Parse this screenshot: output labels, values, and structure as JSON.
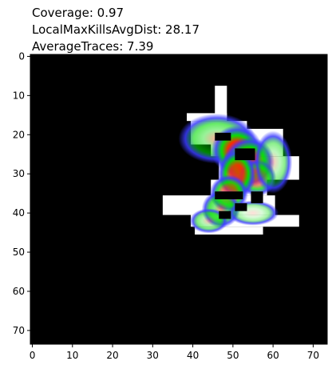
{
  "chart_data": {
    "type": "heatmap",
    "title_lines": [
      "Coverage: 0.97",
      "LocalMaxKillsAvgDist: 28.17",
      "AverageTraces: 7.39"
    ],
    "xlabel": "",
    "ylabel": "",
    "xlim": [
      -0.5,
      73.5
    ],
    "ylim": [
      73.5,
      -0.5
    ],
    "x_ticks": [
      0,
      10,
      20,
      30,
      40,
      50,
      60,
      70
    ],
    "y_ticks": [
      0,
      10,
      20,
      30,
      40,
      50,
      60,
      70
    ],
    "grid": false,
    "colors": {
      "background": "#000000",
      "explored": "#ffffff",
      "density_low": "#3a3aff",
      "density_mid": "#00dd00",
      "density_high": "#ff2a00"
    },
    "explored_cells": [
      [
        46,
        8,
        3,
        8
      ],
      [
        39,
        15,
        10,
        2
      ],
      [
        40,
        17,
        14,
        6
      ],
      [
        45,
        19,
        18,
        7
      ],
      [
        47,
        26,
        20,
        6
      ],
      [
        45,
        32,
        14,
        4
      ],
      [
        33,
        36,
        28,
        5
      ],
      [
        40,
        41,
        27,
        3
      ],
      [
        41,
        44,
        17,
        2
      ]
    ],
    "blocked_cells": [
      [
        46,
        20,
        4,
        2
      ],
      [
        51,
        24,
        5,
        3
      ],
      [
        46,
        35,
        7,
        2
      ],
      [
        51,
        38,
        3,
        2
      ],
      [
        55,
        35,
        3,
        3
      ],
      [
        47,
        40,
        3,
        2
      ]
    ],
    "density_blobs": [
      {
        "x": 46,
        "y": 21,
        "sx": 6,
        "sy": 4,
        "w": 0.4
      },
      {
        "x": 51,
        "y": 24,
        "sx": 4,
        "sy": 4,
        "w": 1.0
      },
      {
        "x": 54,
        "y": 27,
        "sx": 4,
        "sy": 4,
        "w": 0.8
      },
      {
        "x": 56,
        "y": 31,
        "sx": 3,
        "sy": 3,
        "w": 0.55
      },
      {
        "x": 51,
        "y": 30,
        "sx": 3,
        "sy": 4,
        "w": 0.8
      },
      {
        "x": 49,
        "y": 35,
        "sx": 3,
        "sy": 3,
        "w": 0.6
      },
      {
        "x": 47,
        "y": 39,
        "sx": 3,
        "sy": 3,
        "w": 0.5
      },
      {
        "x": 44,
        "y": 42,
        "sx": 3,
        "sy": 2,
        "w": 0.3
      },
      {
        "x": 60,
        "y": 27,
        "sx": 3,
        "sy": 5,
        "w": 0.25
      },
      {
        "x": 55,
        "y": 40,
        "sx": 4,
        "sy": 2,
        "w": 0.15
      }
    ]
  }
}
